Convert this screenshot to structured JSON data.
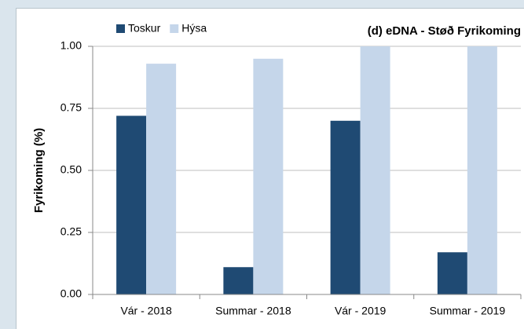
{
  "chart_data": {
    "type": "bar",
    "title": "(d) eDNA - Støð Fyrikoming",
    "ylabel": "Fyrikoming (%)",
    "categories": [
      "Vár - 2018",
      "Summar - 2018",
      "Vár - 2019",
      "Summar - 2019"
    ],
    "series": [
      {
        "name": "Toskur",
        "color": "#1f4a73",
        "values": [
          0.72,
          0.11,
          0.7,
          0.17
        ]
      },
      {
        "name": "Hýsa",
        "color": "#c5d6ea",
        "values": [
          0.93,
          0.95,
          1.0,
          1.0
        ]
      }
    ],
    "ylim": [
      0,
      1
    ],
    "yticks": [
      {
        "value": 0,
        "label": "0.00"
      },
      {
        "value": 0.25,
        "label": "0.25"
      },
      {
        "value": 0.5,
        "label": "0.50"
      },
      {
        "value": 0.75,
        "label": "0.75"
      },
      {
        "value": 1,
        "label": "1.00"
      }
    ],
    "grid": true,
    "legend": "top-left"
  }
}
